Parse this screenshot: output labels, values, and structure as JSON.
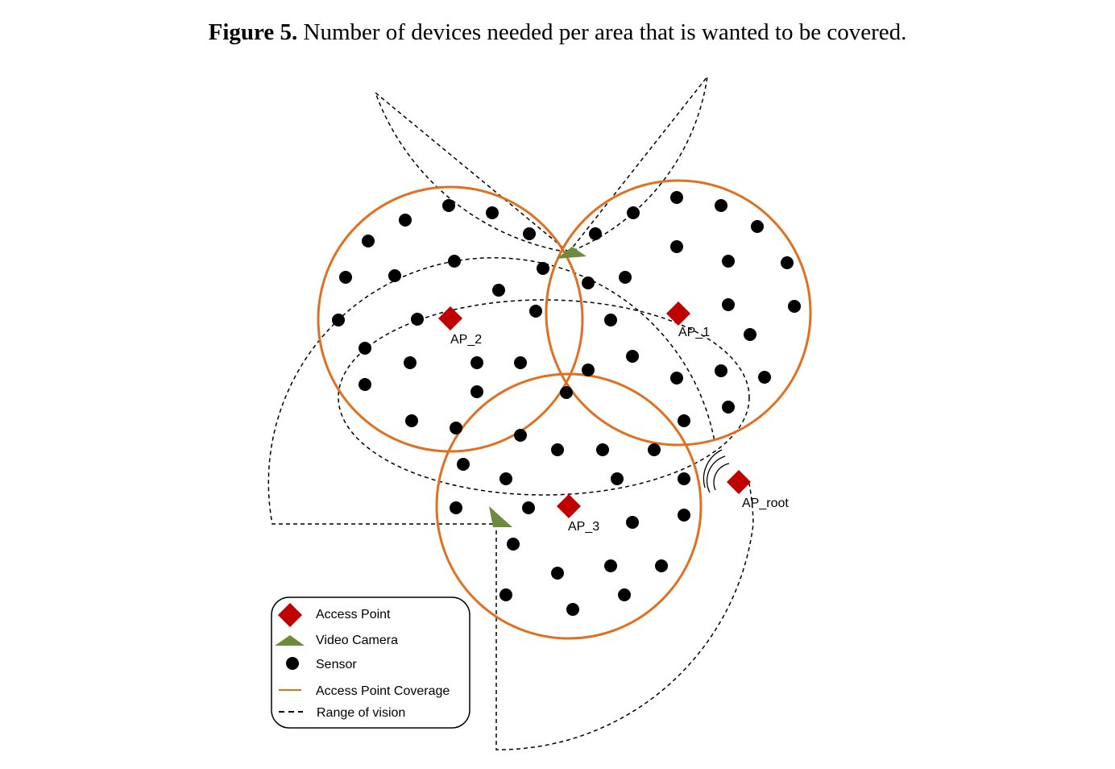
{
  "caption": {
    "prefix": "Figure 5.",
    "text": "Number of devices needed per area that is wanted to be covered."
  },
  "colors": {
    "access_point": "#c00000",
    "video_camera": "#6e8b3d",
    "sensor": "#000000",
    "coverage": "#e07020",
    "vision": "#000000"
  },
  "access_points": [
    {
      "id": "ap-1",
      "label": "AP_1"
    },
    {
      "id": "ap-2",
      "label": "AP_2"
    },
    {
      "id": "ap-3",
      "label": "AP_3"
    },
    {
      "id": "ap-root",
      "label": "AP_root"
    }
  ],
  "legend": {
    "items": [
      {
        "key": "access-point",
        "label": "Access Point",
        "icon": "red-diamond-icon"
      },
      {
        "key": "video-camera",
        "label": "Video Camera",
        "icon": "green-triangle-icon"
      },
      {
        "key": "sensor",
        "label": "Sensor",
        "icon": "black-dot-icon"
      },
      {
        "key": "coverage",
        "label": "Access Point Coverage",
        "icon": "orange-line-icon"
      },
      {
        "key": "vision",
        "label": "Range of vision",
        "icon": "dashed-line-icon"
      }
    ]
  }
}
